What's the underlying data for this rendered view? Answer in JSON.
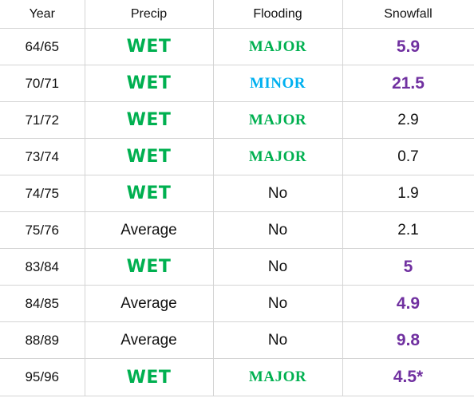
{
  "table": {
    "headers": [
      "Year",
      "Precip",
      "Flooding",
      "Snowfall"
    ],
    "rows": [
      {
        "year": "64/65",
        "precip": "WET",
        "precip_style": "wet",
        "flooding": "MAJOR",
        "flooding_style": "major",
        "snowfall": "5.9",
        "snowfall_style": "highlight"
      },
      {
        "year": "70/71",
        "precip": "WET",
        "precip_style": "wet",
        "flooding": "MINOR",
        "flooding_style": "minor",
        "snowfall": "21.5",
        "snowfall_style": "highlight"
      },
      {
        "year": "71/72",
        "precip": "WET",
        "precip_style": "wet",
        "flooding": "MAJOR",
        "flooding_style": "major",
        "snowfall": "2.9",
        "snowfall_style": "plain"
      },
      {
        "year": "73/74",
        "precip": "WET",
        "precip_style": "wet",
        "flooding": "MAJOR",
        "flooding_style": "major",
        "snowfall": "0.7",
        "snowfall_style": "plain"
      },
      {
        "year": "74/75",
        "precip": "WET",
        "precip_style": "wet",
        "flooding": "No",
        "flooding_style": "plain",
        "snowfall": "1.9",
        "snowfall_style": "plain"
      },
      {
        "year": "75/76",
        "precip": "Average",
        "precip_style": "plain",
        "flooding": "No",
        "flooding_style": "plain",
        "snowfall": "2.1",
        "snowfall_style": "plain"
      },
      {
        "year": "83/84",
        "precip": "WET",
        "precip_style": "wet",
        "flooding": "No",
        "flooding_style": "plain",
        "snowfall": "5",
        "snowfall_style": "highlight"
      },
      {
        "year": "84/85",
        "precip": "Average",
        "precip_style": "plain",
        "flooding": "No",
        "flooding_style": "plain",
        "snowfall": "4.9",
        "snowfall_style": "highlight"
      },
      {
        "year": "88/89",
        "precip": "Average",
        "precip_style": "plain",
        "flooding": "No",
        "flooding_style": "plain",
        "snowfall": "9.8",
        "snowfall_style": "highlight"
      },
      {
        "year": "95/96",
        "precip": "WET",
        "precip_style": "wet",
        "flooding": "MAJOR",
        "flooding_style": "major",
        "snowfall": "4.5*",
        "snowfall_style": "highlight"
      }
    ]
  },
  "colors": {
    "wet_green": "#00b050",
    "minor_blue": "#00b0f0",
    "highlight_purple": "#7030a0",
    "grid_line": "#d4d4d4"
  }
}
